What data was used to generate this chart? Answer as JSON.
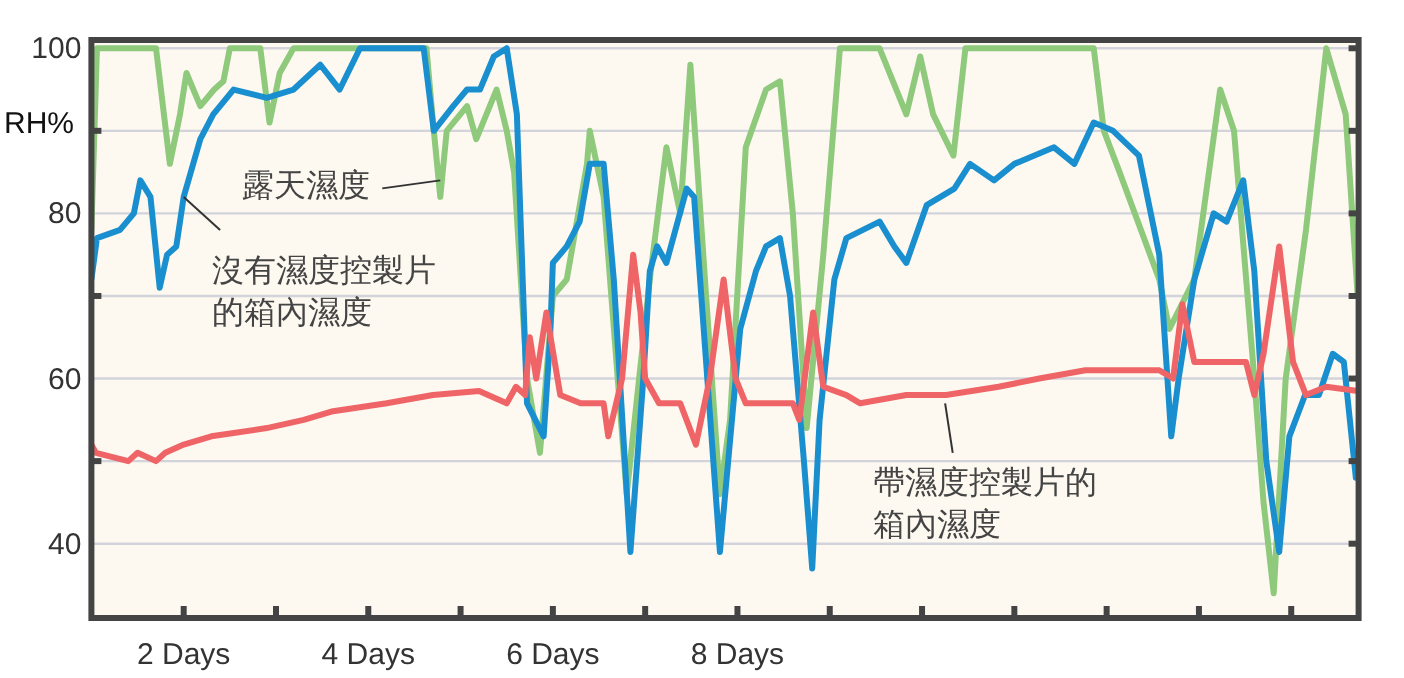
{
  "chart_data": {
    "type": "line",
    "ylabel": "RH%",
    "xlim": [
      1,
      14.73
    ],
    "ylim": [
      31,
      101
    ],
    "xticks": [
      {
        "value": 2,
        "label": "2 Days"
      },
      {
        "value": 3,
        "label": null
      },
      {
        "value": 4,
        "label": "4 Days"
      },
      {
        "value": 5,
        "label": null
      },
      {
        "value": 6,
        "label": "6 Days"
      },
      {
        "value": 7,
        "label": null
      },
      {
        "value": 8,
        "label": "8 Days"
      },
      {
        "value": 9,
        "label": null
      },
      {
        "value": 10,
        "label": null
      },
      {
        "value": 11,
        "label": null
      },
      {
        "value": 12,
        "label": null
      },
      {
        "value": 13,
        "label": null
      },
      {
        "value": 14,
        "label": null
      }
    ],
    "yticks": [
      40,
      {
        "value": 50,
        "label": null
      },
      60,
      {
        "value": 70,
        "label": null
      },
      80,
      {
        "value": 90,
        "label": null
      },
      100
    ],
    "grid": "y",
    "marker": "none",
    "line_style": "solid",
    "series": [
      {
        "color": "#8ec97c",
        "x": [
          1.0,
          1.06,
          1.7,
          1.85,
          1.96,
          2.03,
          2.18,
          2.33,
          2.43,
          2.5,
          2.83,
          2.93,
          3.04,
          3.19,
          4.63,
          4.71,
          4.78,
          4.85,
          5.07,
          5.17,
          5.39,
          5.5,
          5.58,
          5.72,
          5.86,
          6.0,
          6.15,
          6.37,
          6.4,
          6.55,
          6.8,
          7.05,
          7.23,
          7.38,
          7.49,
          7.66,
          7.81,
          7.92,
          8.09,
          8.31,
          8.46,
          8.6,
          8.75,
          8.93,
          9.11,
          9.54,
          9.83,
          9.98,
          10.12,
          10.34,
          10.47,
          11.86,
          11.97,
          12.14,
          12.57,
          12.68,
          12.95,
          13.23,
          13.38,
          13.6,
          13.7,
          13.81,
          13.94,
          14.16,
          14.38,
          14.59,
          14.72
        ],
        "values": [
          78,
          100,
          100,
          86,
          92,
          97,
          93,
          95,
          96,
          100,
          100,
          91,
          97,
          100,
          100,
          90,
          82,
          90,
          93,
          89,
          95,
          90,
          85,
          60,
          51,
          70,
          72,
          86,
          90,
          82,
          46,
          72,
          88,
          80,
          98,
          70,
          46,
          55,
          88,
          95,
          96,
          80,
          54,
          75,
          100,
          100,
          92,
          99,
          92,
          87,
          100,
          100,
          90,
          85,
          72,
          66,
          72,
          95,
          90,
          60,
          45,
          34,
          60,
          78,
          100,
          92,
          70
        ]
      },
      {
        "color": "#1a8fd0",
        "x": [
          1.0,
          1.06,
          1.31,
          1.46,
          1.53,
          1.64,
          1.74,
          1.82,
          1.92,
          2.0,
          2.18,
          2.32,
          2.54,
          2.9,
          3.19,
          3.48,
          3.69,
          3.91,
          4.6,
          4.71,
          4.92,
          5.07,
          5.21,
          5.36,
          5.5,
          5.61,
          5.72,
          5.9,
          5.97,
          6.0,
          6.15,
          6.29,
          6.4,
          6.55,
          6.66,
          6.84,
          6.98,
          7.05,
          7.13,
          7.23,
          7.45,
          7.53,
          7.81,
          8.03,
          8.2,
          8.31,
          8.46,
          8.57,
          8.72,
          8.81,
          8.89,
          9.05,
          9.18,
          9.54,
          9.7,
          9.83,
          10.05,
          10.35,
          10.52,
          10.78,
          11.0,
          11.43,
          11.65,
          11.86,
          12.07,
          12.35,
          12.57,
          12.7,
          12.78,
          12.95,
          13.16,
          13.3,
          13.48,
          13.6,
          13.73,
          13.87,
          13.98,
          14.15,
          14.3,
          14.45,
          14.57,
          14.7
        ],
        "values": [
          72,
          77,
          78,
          80,
          84,
          82,
          71,
          75,
          76,
          82,
          89,
          92,
          95,
          94,
          95,
          98,
          95,
          100,
          100,
          90,
          93,
          95,
          95,
          99,
          100,
          92,
          57,
          53,
          65,
          74,
          76,
          79,
          86,
          86,
          72,
          39,
          60,
          73,
          76,
          74,
          83,
          82,
          39,
          66,
          73,
          76,
          77,
          70,
          50,
          37,
          55,
          72,
          77,
          79,
          76,
          74,
          81,
          83,
          86,
          84,
          86,
          88,
          86,
          91,
          90,
          87,
          75,
          53,
          60,
          72,
          80,
          79,
          84,
          73,
          50,
          39,
          53,
          58,
          58,
          63,
          62,
          48
        ]
      },
      {
        "color": "#ef6466",
        "x": [
          1.0,
          1.05,
          1.4,
          1.5,
          1.7,
          1.8,
          2.0,
          2.3,
          2.9,
          3.3,
          3.6,
          4.2,
          4.7,
          5.2,
          5.5,
          5.6,
          5.7,
          5.75,
          5.82,
          5.93,
          6.08,
          6.3,
          6.55,
          6.6,
          6.75,
          6.87,
          6.95,
          7.0,
          7.15,
          7.38,
          7.55,
          7.7,
          7.85,
          7.98,
          8.09,
          8.6,
          8.67,
          8.82,
          8.93,
          9.18,
          9.33,
          9.83,
          10.26,
          10.83,
          11.27,
          11.77,
          12.57,
          12.72,
          12.82,
          12.95,
          13.51,
          13.6,
          13.7,
          13.87,
          14.02,
          14.16,
          14.38,
          14.72
        ],
        "values": [
          52,
          51,
          50,
          51,
          50,
          51,
          52,
          53,
          54,
          55,
          56,
          57,
          58,
          58.5,
          57,
          59,
          58,
          65,
          60,
          68,
          58,
          57,
          57,
          53,
          60,
          75,
          68,
          60,
          57,
          57,
          52,
          60,
          72,
          60,
          57,
          57,
          55,
          68,
          59,
          58,
          57,
          58,
          58,
          59,
          60,
          61,
          61,
          60,
          69,
          62,
          62,
          58,
          63,
          76,
          62,
          58,
          59,
          58.5
        ]
      }
    ],
    "annotations": [
      {
        "text": "露天濕度",
        "x": 4.78,
        "y": 84
      },
      {
        "text": "沒有濕度控製片的箱內濕度",
        "x": 2.0,
        "y": 82
      },
      {
        "text": "帶濕度控製片的箱內濕度",
        "x": 10.25,
        "y": 57
      }
    ]
  }
}
